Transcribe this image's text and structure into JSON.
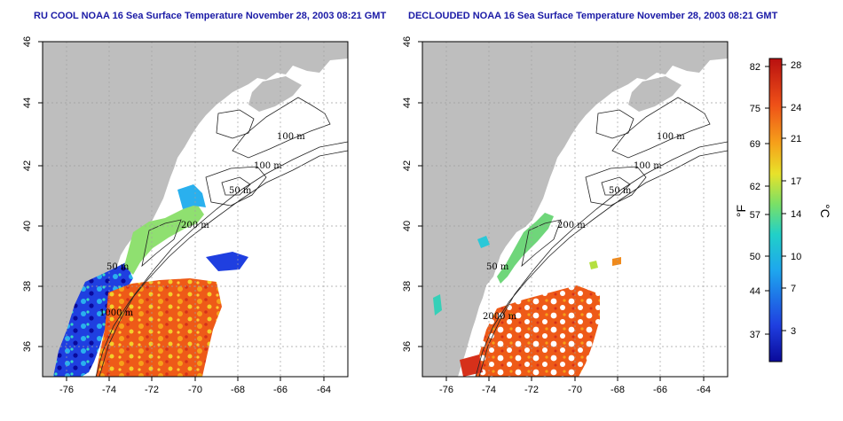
{
  "maps": [
    {
      "id": "left",
      "title": "RU COOL NOAA 16 Sea Surface Temperature November 28, 2003 08:21 GMT",
      "y_ticks": [
        "36",
        "38",
        "40",
        "42",
        "44",
        "46"
      ],
      "x_ticks": [
        "-76",
        "-74",
        "-72",
        "-70",
        "-68",
        "-66",
        "-64"
      ],
      "contour_labels": [
        "100 m",
        "100 m",
        "50 m",
        "200 m",
        "50 m",
        "1000 m"
      ]
    },
    {
      "id": "right",
      "title": "DECLOUDED NOAA 16 Sea Surface Temperature November 28, 2003 08:21 GMT",
      "y_ticks": [
        "36",
        "38",
        "40",
        "42",
        "44",
        "46"
      ],
      "x_ticks": [
        "-76",
        "-74",
        "-72",
        "-70",
        "-68",
        "-66",
        "-64"
      ],
      "contour_labels": [
        "100 m",
        "100 m",
        "50 m",
        "200 m",
        "50 m",
        "2000 m"
      ]
    }
  ],
  "colorbar": {
    "f_ticks": [
      "82",
      "75",
      "69",
      "62",
      "57",
      "50",
      "44",
      "37"
    ],
    "c_ticks": [
      "28",
      "24",
      "21",
      "17",
      "14",
      "10",
      "7",
      "3"
    ],
    "f_unit": "°F",
    "c_unit": "°C",
    "colors": [
      "#0a0a9a",
      "#1f3fe0",
      "#1ea6ee",
      "#21d0c8",
      "#7ae066",
      "#e8e22a",
      "#f6a11a",
      "#ee4f18",
      "#b81010"
    ]
  },
  "style": {
    "land_color": "#bebebe",
    "ocean_color": "#ffffff",
    "grid_color": "#a0a0a0"
  }
}
